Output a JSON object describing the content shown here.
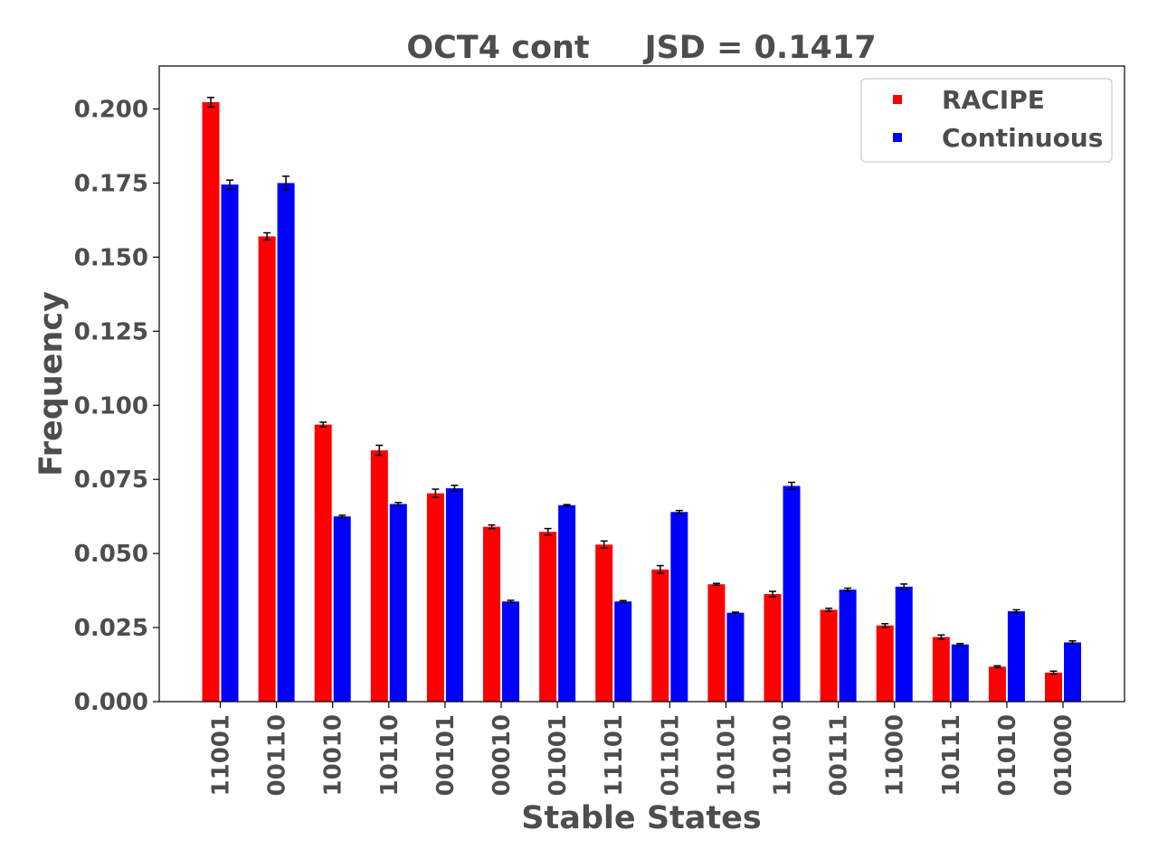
{
  "chart_data": {
    "type": "bar",
    "title": "OCT4 cont     JSD = 0.1417",
    "xlabel": "Stable States",
    "ylabel": "Frequency",
    "ylim": [
      0,
      0.2145
    ],
    "yticks": [
      "0.000",
      "0.025",
      "0.050",
      "0.075",
      "0.100",
      "0.125",
      "0.150",
      "0.175",
      "0.200"
    ],
    "grid": false,
    "legend_position": "top-right",
    "categories": [
      "11001",
      "00110",
      "10010",
      "10110",
      "00101",
      "00010",
      "01001",
      "11101",
      "01101",
      "10101",
      "11010",
      "00111",
      "11000",
      "10111",
      "01010",
      "01000"
    ],
    "series": [
      {
        "name": "RACIPE",
        "color": "#ff0000",
        "values": [
          0.2023,
          0.157,
          0.0935,
          0.0848,
          0.0703,
          0.059,
          0.0573,
          0.053,
          0.0446,
          0.0396,
          0.0363,
          0.031,
          0.0257,
          0.0218,
          0.0118,
          0.0098
        ],
        "errors": [
          0.0016,
          0.0012,
          0.0008,
          0.0017,
          0.0014,
          0.0006,
          0.0011,
          0.0012,
          0.0013,
          0.0003,
          0.0009,
          0.0005,
          0.0006,
          0.0007,
          0.0003,
          0.0005
        ]
      },
      {
        "name": "Continuous",
        "color": "#0000ff",
        "values": [
          0.1745,
          0.175,
          0.0625,
          0.0667,
          0.072,
          0.0338,
          0.0663,
          0.0338,
          0.064,
          0.03,
          0.0728,
          0.0378,
          0.0388,
          0.0193,
          0.0305,
          0.02
        ],
        "errors": [
          0.0015,
          0.0023,
          0.0004,
          0.0005,
          0.001,
          0.0004,
          0.0002,
          0.0003,
          0.0005,
          0.0002,
          0.0012,
          0.0005,
          0.0009,
          0.0003,
          0.0005,
          0.0005
        ]
      }
    ]
  }
}
